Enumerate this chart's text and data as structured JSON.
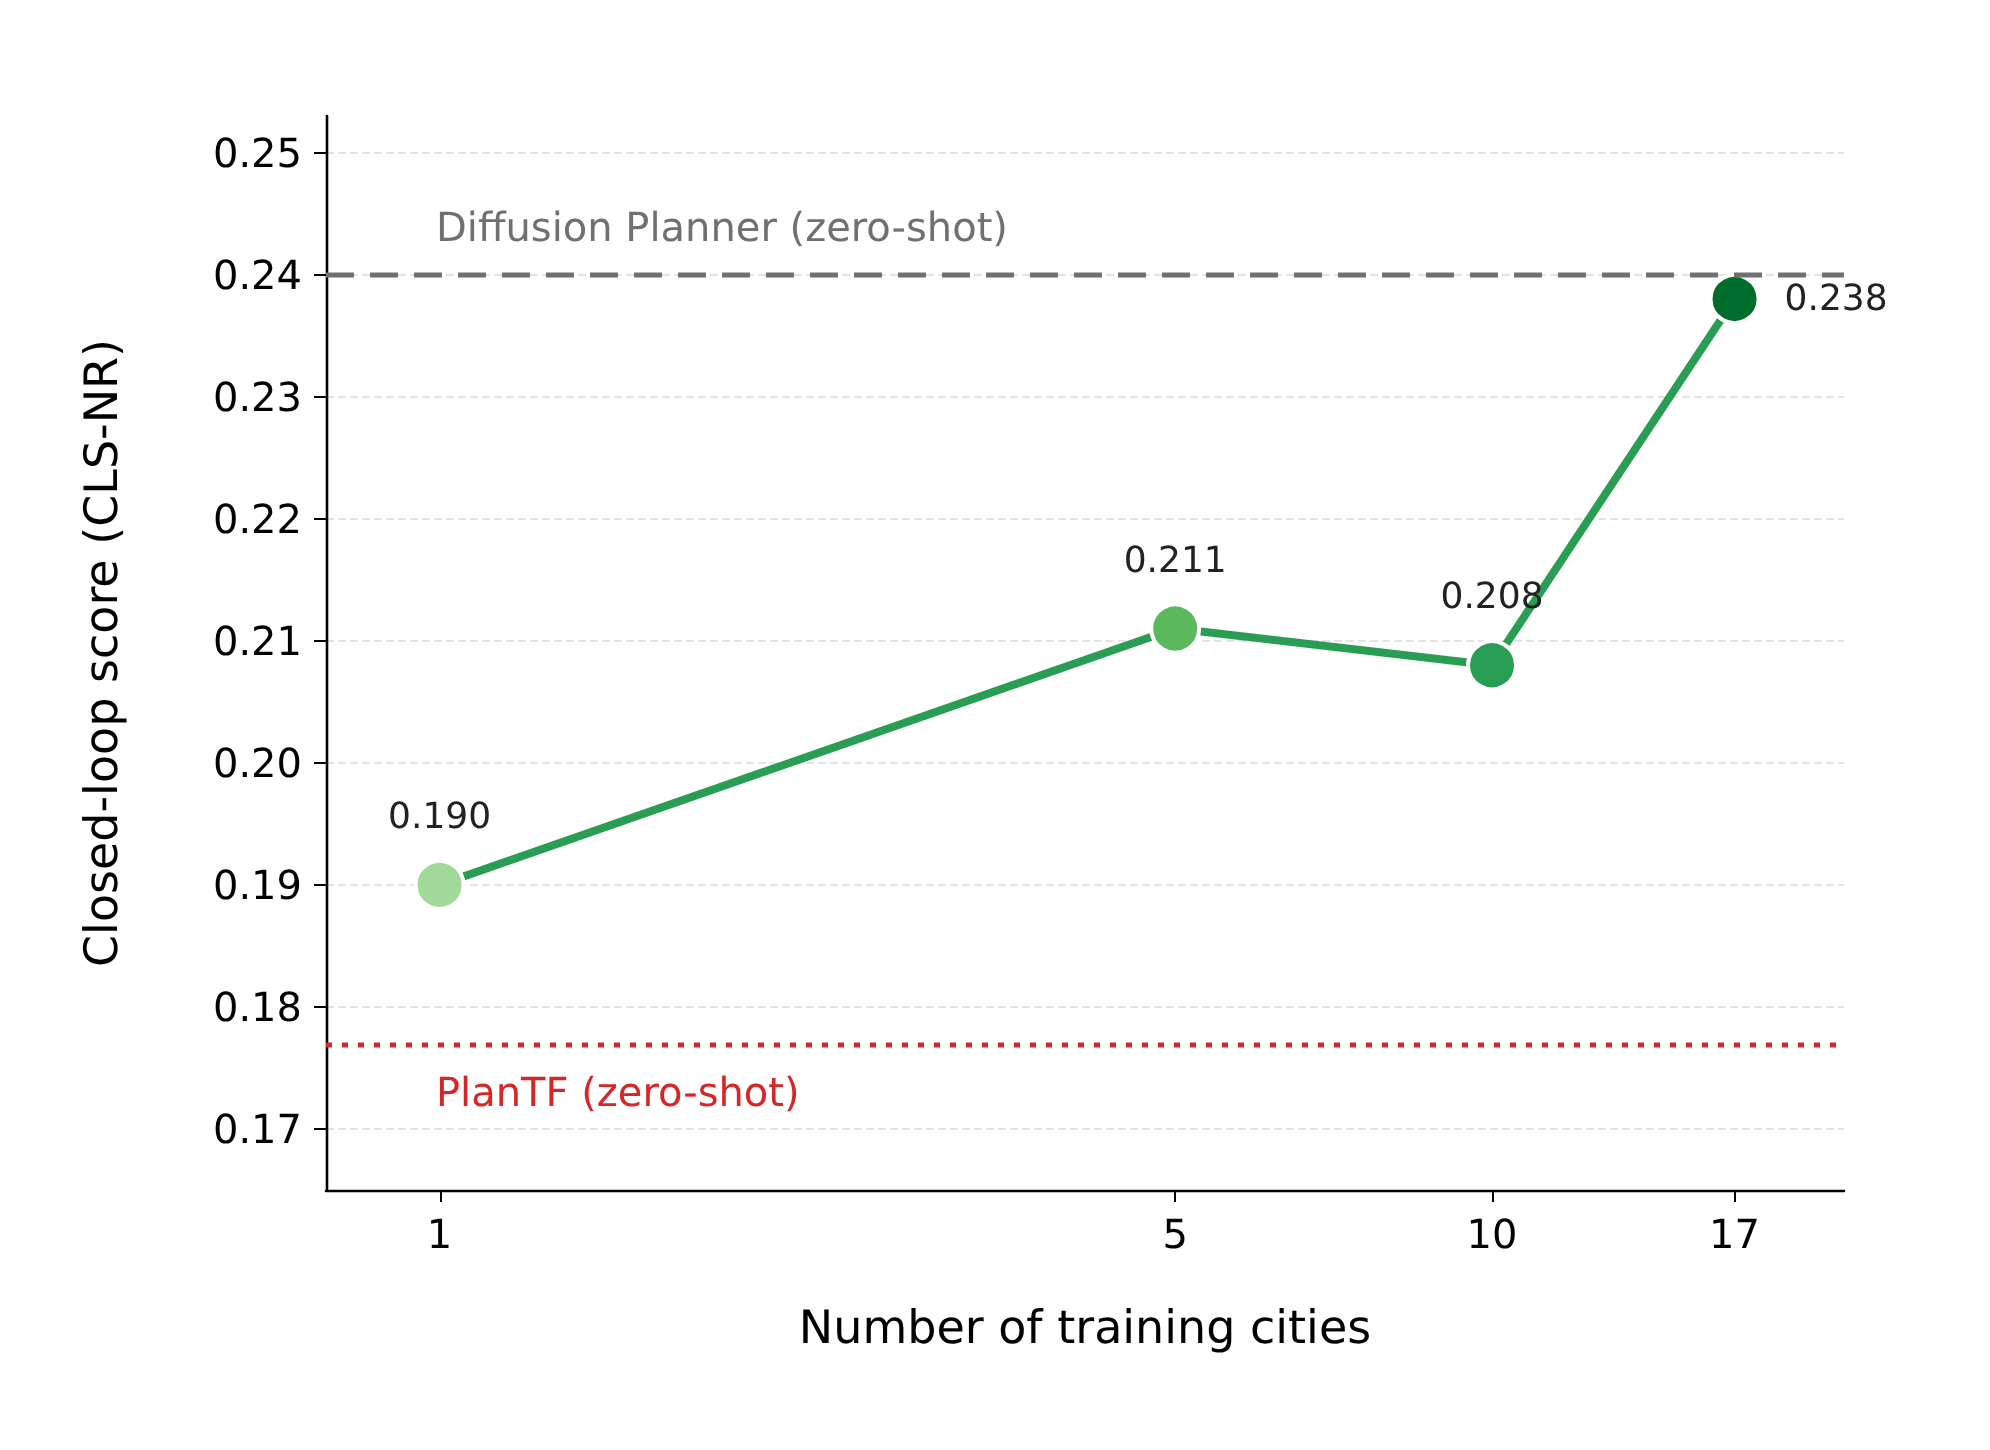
{
  "chart_data": {
    "type": "line",
    "xlabel": "Number of training cities",
    "ylabel": "Closed-loop score (CLS-NR)",
    "x": [
      1,
      5,
      10,
      17
    ],
    "series": [
      {
        "color": "#2a9d54",
        "values": [
          0.19,
          0.211,
          0.208,
          0.238
        ],
        "colors": [
          "#a1d99b",
          "#5cb85c",
          "#2a9d54",
          "#006d2c"
        ],
        "value_labels": [
          "0.190",
          "0.211",
          "0.208",
          "0.238"
        ]
      }
    ],
    "log": "x",
    "xlim": [
      0.78,
      21.6
    ],
    "xticks": [
      1,
      5,
      10,
      17
    ],
    "ylim": [
      0.165,
      0.253
    ],
    "yticks": [
      0.17,
      0.18,
      0.19,
      {
        "value": 0.2,
        "label": "0.20"
      },
      0.21,
      0.22,
      0.23,
      0.24,
      0.25
    ],
    "grid": "y",
    "marker": "circle",
    "line_style": "solid",
    "ref_lines": [
      {
        "axis": "y",
        "value": 0.24,
        "label": "Diffusion Planner (zero-shot)",
        "color": "#707070",
        "line_style": "dashed"
      },
      {
        "axis": "y",
        "value": 0.177,
        "label": "PlanTF (zero-shot)",
        "color": "#d62728",
        "line_style": "dotted"
      }
    ]
  }
}
